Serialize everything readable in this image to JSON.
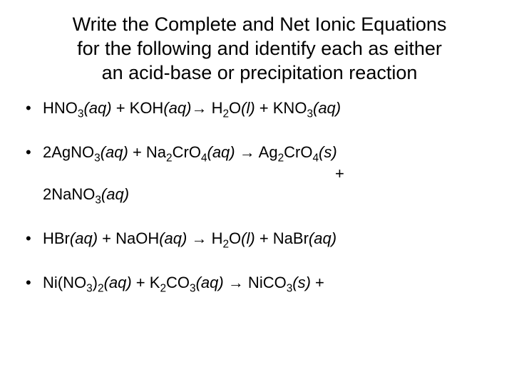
{
  "colors": {
    "background": "#ffffff",
    "text": "#000000"
  },
  "typography": {
    "title_fontsize": 27,
    "body_fontsize": 22,
    "font_family": "Arial"
  },
  "title": {
    "line1": "Write the Complete and Net Ionic Equations",
    "line2": "for the following and identify each as either",
    "line3": "an acid-base or precipitation reaction"
  },
  "equations": [
    {
      "type": "acid-base",
      "tokens": [
        "HNO",
        "3",
        "(aq)",
        " + KOH",
        "(aq)",
        "→",
        " H",
        "2",
        "O",
        "(l)",
        " + KNO",
        "3",
        "(aq)"
      ]
    },
    {
      "type": "precipitation",
      "tokens_line1": [
        "2AgNO",
        "3",
        "(aq)",
        " + Na",
        "2",
        "CrO",
        "4",
        "(aq)",
        " ",
        "→",
        " Ag",
        "2",
        "CrO",
        "4",
        "(s)"
      ],
      "plus": "+",
      "tokens_line2": [
        "2NaNO",
        "3",
        "(aq)"
      ]
    },
    {
      "type": "acid-base",
      "tokens": [
        "HBr",
        "(aq)",
        " + NaOH",
        "(aq)",
        " ",
        "→",
        " H",
        "2",
        "O",
        "(l)",
        " + NaBr",
        "(aq)"
      ]
    },
    {
      "type": "precipitation",
      "tokens": [
        "Ni(NO",
        "3",
        ")",
        "2",
        "(aq)",
        " + K",
        "2",
        "CO",
        "3",
        "(aq)",
        " ",
        "→",
        " NiCO",
        "3",
        "(s)",
        " +"
      ]
    }
  ],
  "arrow_glyph": "→"
}
